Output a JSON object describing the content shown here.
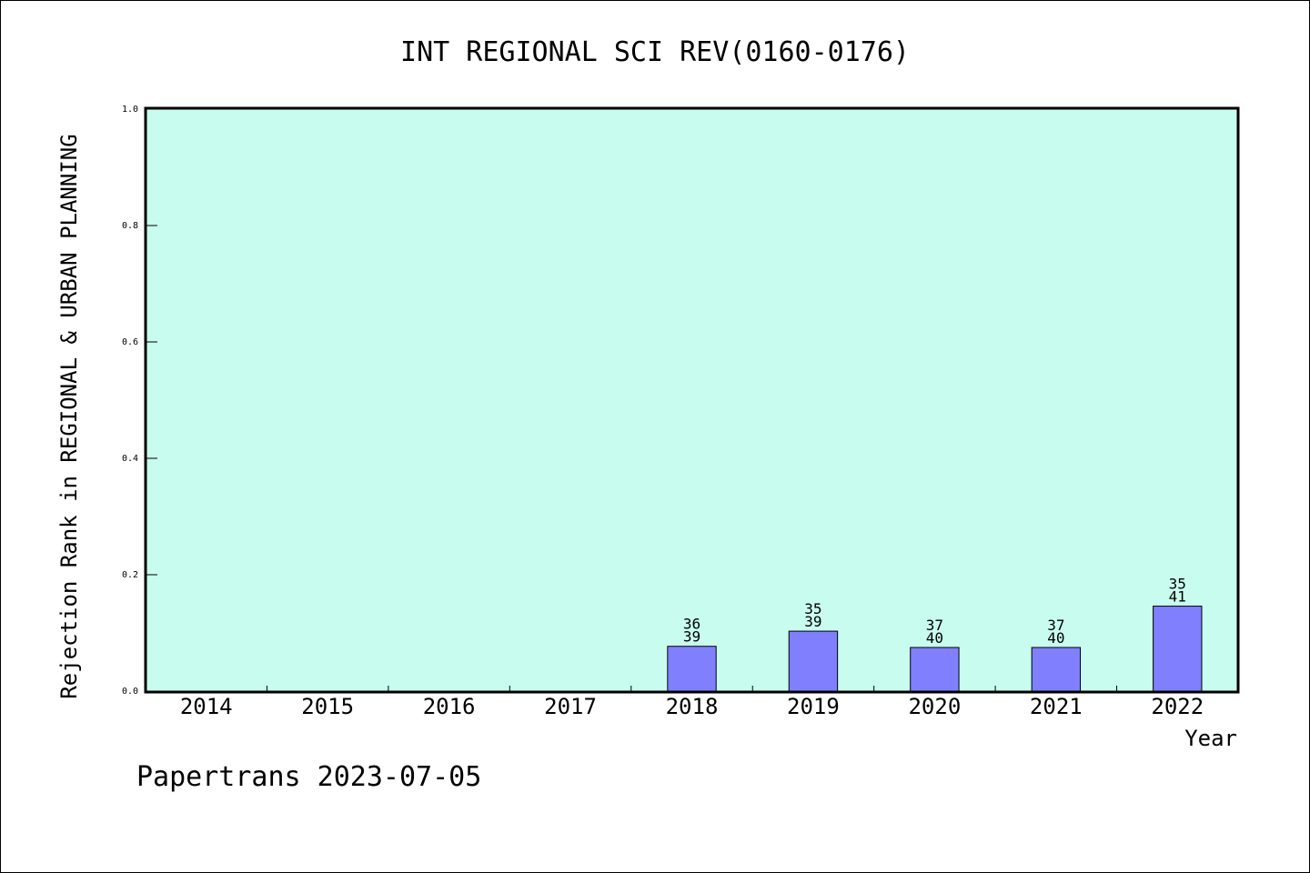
{
  "chart_data": {
    "type": "bar",
    "title": "INT REGIONAL SCI REV(0160-0176)",
    "xlabel": "Year",
    "ylabel": "Rejection Rank in REGIONAL & URBAN PLANNING",
    "ylim": [
      0,
      1.0
    ],
    "yticks": [
      "0.0",
      "0.2",
      "0.4",
      "0.6",
      "0.8",
      "1.0"
    ],
    "categories": [
      "2014",
      "2015",
      "2016",
      "2017",
      "2018",
      "2019",
      "2020",
      "2021",
      "2022"
    ],
    "values": [
      null,
      null,
      null,
      null,
      0.077,
      0.103,
      0.075,
      0.075,
      0.146
    ],
    "labels_top": [
      "",
      "",
      "",
      "",
      "36",
      "35",
      "37",
      "37",
      "35"
    ],
    "labels_bottom": [
      "",
      "",
      "",
      "",
      "39",
      "39",
      "40",
      "40",
      "41"
    ],
    "grid": false,
    "colors": {
      "plot_background": "#c8fcee",
      "bar_fill": "#8080ff",
      "bar_stroke": "#000000"
    }
  },
  "footer": {
    "text": "Papertrans 2023-07-05"
  }
}
